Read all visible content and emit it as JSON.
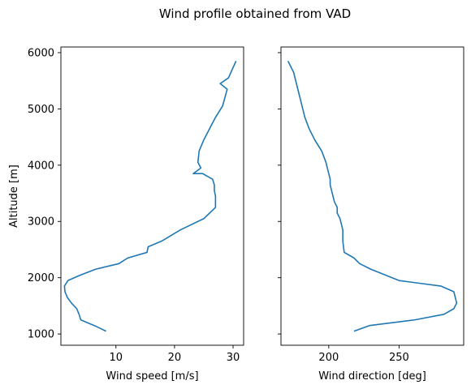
{
  "figure": {
    "title": "Wind profile obtained from VAD"
  },
  "chart_data": [
    {
      "type": "line",
      "xlabel": "Wind speed [m/s]",
      "ylabel": "Altitude [m]",
      "xlim": [
        0.6,
        31.8
      ],
      "ylim": [
        800,
        6100
      ],
      "xticks": [
        10,
        20,
        30
      ],
      "yticks": [
        1000,
        2000,
        3000,
        4000,
        5000,
        6000
      ],
      "color": "#1f77b4",
      "series": [
        {
          "x": [
            8.3,
            6.3,
            4.0,
            3.7,
            3.3,
            2.4,
            1.7,
            1.3,
            1.2,
            1.8,
            4.0,
            6.5,
            10.5,
            12.0,
            15.3,
            15.5,
            17.8,
            21.0,
            25.0,
            27.0,
            27.0,
            26.8,
            26.8,
            26.5,
            24.8,
            23.2,
            24.5,
            24.0,
            24.2,
            25.0,
            26.0,
            27.0,
            28.2,
            29.0,
            27.8,
            29.2,
            30.5
          ],
          "y": [
            1050,
            1150,
            1250,
            1350,
            1450,
            1550,
            1650,
            1750,
            1850,
            1950,
            2050,
            2150,
            2250,
            2350,
            2450,
            2550,
            2650,
            2850,
            3050,
            3250,
            3450,
            3550,
            3650,
            3750,
            3850,
            3850,
            3950,
            4050,
            4250,
            4450,
            4650,
            4850,
            5050,
            5350,
            5450,
            5550,
            5850
          ]
        }
      ]
    },
    {
      "type": "line",
      "xlabel": "Wind direction [deg]",
      "ylabel": "",
      "xlim": [
        166,
        296
      ],
      "ylim": [
        800,
        6100
      ],
      "xticks": [
        200,
        250
      ],
      "yticks": [
        1000,
        2000,
        3000,
        4000,
        5000,
        6000
      ],
      "color": "#1f77b4",
      "series": [
        {
          "x": [
            218,
            229,
            261,
            282,
            289,
            291,
            290,
            289,
            280,
            250,
            230,
            222,
            218,
            211,
            210,
            210,
            209,
            208,
            206,
            206,
            204,
            203,
            202,
            201,
            201,
            200,
            199,
            198,
            195,
            190,
            186,
            183,
            181,
            179,
            177,
            176,
            175,
            171
          ],
          "y": [
            1050,
            1150,
            1250,
            1350,
            1450,
            1550,
            1650,
            1750,
            1850,
            1950,
            2150,
            2250,
            2350,
            2450,
            2650,
            2850,
            2950,
            3050,
            3150,
            3250,
            3350,
            3450,
            3550,
            3650,
            3750,
            3850,
            3950,
            4050,
            4250,
            4450,
            4650,
            4850,
            5050,
            5250,
            5450,
            5550,
            5650,
            5850
          ]
        }
      ]
    }
  ]
}
